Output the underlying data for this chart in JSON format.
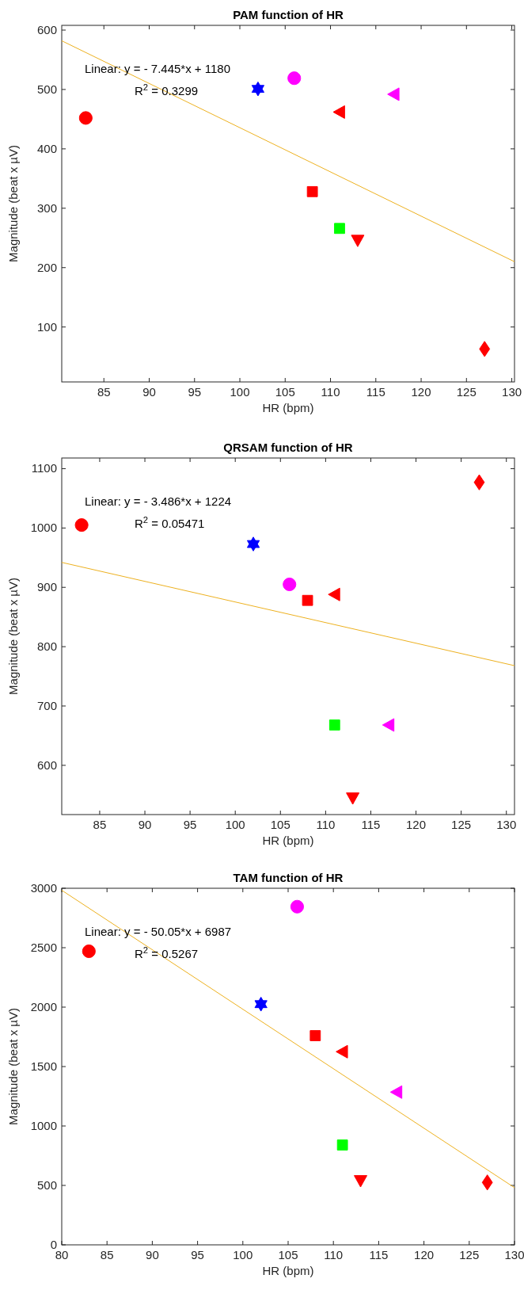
{
  "chart_data": [
    {
      "type": "scatter",
      "title": "PAM function of HR",
      "xlabel": "HR (bpm)",
      "ylabel": "Magnitude (beat x µV)",
      "xlim": [
        80.35,
        130.3
      ],
      "ylim": [
        7.5,
        608
      ],
      "xticks": [
        85,
        90,
        95,
        100,
        105,
        110,
        115,
        120,
        125,
        130
      ],
      "yticks": [
        100,
        200,
        300,
        400,
        500,
        600
      ],
      "grid": false,
      "annotations": [
        "Linear:  y = - 7.445*x + 1180",
        "R$^{2}$ = 0.3299"
      ],
      "series": [
        {
          "type": "line",
          "color": "#edb120",
          "marker": "none",
          "line_style": "solid",
          "x": [
            80.35,
            130.3
          ],
          "values": [
            582,
            210
          ]
        },
        {
          "color": "#ff0000",
          "marker": "circle",
          "x": [
            83
          ],
          "values": [
            452
          ]
        },
        {
          "color": "#0000ff",
          "marker": "star",
          "x": [
            102
          ],
          "values": [
            501
          ]
        },
        {
          "color": "#ff00ff",
          "marker": "circle",
          "x": [
            106
          ],
          "values": [
            519
          ]
        },
        {
          "color": "#ff0000",
          "marker": "triangle-left",
          "x": [
            111
          ],
          "values": [
            462
          ]
        },
        {
          "color": "#ff00ff",
          "marker": "triangle-left",
          "x": [
            117
          ],
          "values": [
            492
          ]
        },
        {
          "color": "#ff0000",
          "marker": "square",
          "x": [
            108
          ],
          "values": [
            328
          ]
        },
        {
          "color": "#00ff00",
          "marker": "square",
          "x": [
            111
          ],
          "values": [
            266
          ]
        },
        {
          "color": "#ff0000",
          "marker": "triangle-down",
          "x": [
            113
          ],
          "values": [
            246
          ]
        },
        {
          "color": "#ff0000",
          "marker": "diamond",
          "x": [
            127
          ],
          "values": [
            63
          ]
        }
      ]
    },
    {
      "type": "scatter",
      "title": "QRSAM function of HR",
      "xlabel": "HR (bpm)",
      "ylabel": "Magnitude (beat x µV)",
      "xlim": [
        80.8,
        130.9
      ],
      "ylim": [
        517,
        1118
      ],
      "xticks": [
        85,
        90,
        95,
        100,
        105,
        110,
        115,
        120,
        125,
        130
      ],
      "yticks": [
        600,
        700,
        800,
        900,
        1000,
        1100
      ],
      "grid": false,
      "annotations": [
        "Linear:  y = - 3.486*x + 1224",
        "R$^{2}$ = 0.05471"
      ],
      "series": [
        {
          "type": "line",
          "color": "#edb120",
          "marker": "none",
          "line_style": "solid",
          "x": [
            80.8,
            130.9
          ],
          "values": [
            942,
            768
          ]
        },
        {
          "color": "#ff0000",
          "marker": "circle",
          "x": [
            83
          ],
          "values": [
            1005
          ]
        },
        {
          "color": "#0000ff",
          "marker": "star",
          "x": [
            102
          ],
          "values": [
            973
          ]
        },
        {
          "color": "#ff00ff",
          "marker": "circle",
          "x": [
            106
          ],
          "values": [
            905
          ]
        },
        {
          "color": "#ff0000",
          "marker": "triangle-left",
          "x": [
            111
          ],
          "values": [
            888
          ]
        },
        {
          "color": "#ff00ff",
          "marker": "triangle-left",
          "x": [
            117
          ],
          "values": [
            668
          ]
        },
        {
          "color": "#ff0000",
          "marker": "square",
          "x": [
            108
          ],
          "values": [
            878
          ]
        },
        {
          "color": "#00ff00",
          "marker": "square",
          "x": [
            111
          ],
          "values": [
            668
          ]
        },
        {
          "color": "#ff0000",
          "marker": "triangle-down",
          "x": [
            113
          ],
          "values": [
            545
          ]
        },
        {
          "color": "#ff0000",
          "marker": "diamond",
          "x": [
            127
          ],
          "values": [
            1077
          ]
        }
      ]
    },
    {
      "type": "scatter",
      "title": "TAM function of HR",
      "xlabel": "HR (bpm)",
      "ylabel": "Magnitude (beat x µV)",
      "xlim": [
        80,
        130
      ],
      "ylim": [
        0,
        3000
      ],
      "xticks": [
        80,
        85,
        90,
        95,
        100,
        105,
        110,
        115,
        120,
        125,
        130
      ],
      "yticks": [
        0,
        500,
        1000,
        1500,
        2000,
        2500,
        3000
      ],
      "grid": false,
      "annotations": [
        "Linear:  y = - 50.05*x + 6987",
        "R$^{2}$ = 0.5267"
      ],
      "series": [
        {
          "type": "line",
          "color": "#edb120",
          "marker": "none",
          "line_style": "solid",
          "x": [
            80,
            130
          ],
          "values": [
            2983,
            481
          ]
        },
        {
          "color": "#ff0000",
          "marker": "circle",
          "x": [
            83
          ],
          "values": [
            2470
          ]
        },
        {
          "color": "#0000ff",
          "marker": "star",
          "x": [
            102
          ],
          "values": [
            2025
          ]
        },
        {
          "color": "#ff00ff",
          "marker": "circle",
          "x": [
            106
          ],
          "values": [
            2845
          ]
        },
        {
          "color": "#ff0000",
          "marker": "triangle-left",
          "x": [
            111
          ],
          "values": [
            1625
          ]
        },
        {
          "color": "#ff00ff",
          "marker": "triangle-left",
          "x": [
            117
          ],
          "values": [
            1285
          ]
        },
        {
          "color": "#ff0000",
          "marker": "square",
          "x": [
            108
          ],
          "values": [
            1760
          ]
        },
        {
          "color": "#00ff00",
          "marker": "square",
          "x": [
            111
          ],
          "values": [
            840
          ]
        },
        {
          "color": "#ff0000",
          "marker": "triangle-down",
          "x": [
            113
          ],
          "values": [
            540
          ]
        },
        {
          "color": "#ff0000",
          "marker": "diamond",
          "x": [
            127
          ],
          "values": [
            525
          ]
        }
      ]
    }
  ]
}
